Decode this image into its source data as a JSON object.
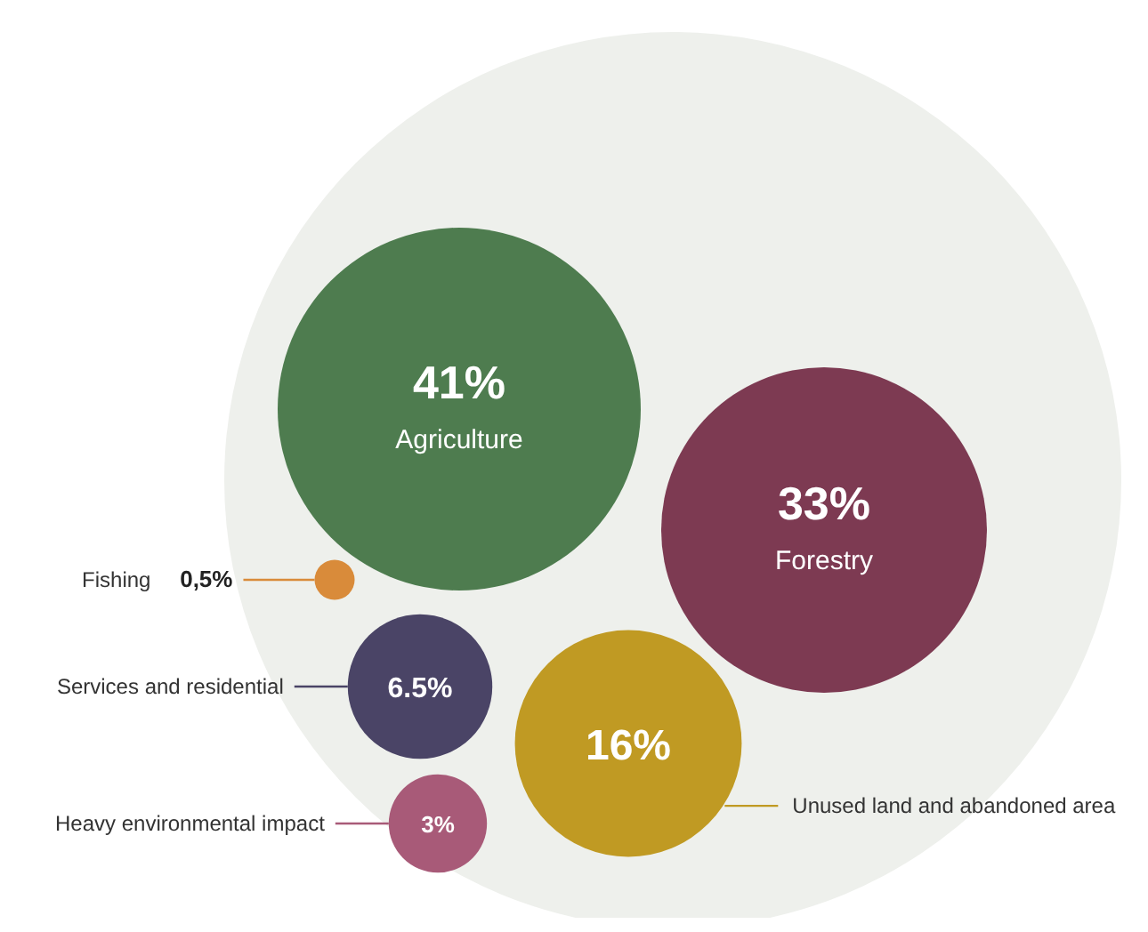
{
  "chart_data": {
    "type": "other",
    "categories": [
      "Agriculture",
      "Forestry",
      "Unused land and abandoned area",
      "Services and residential",
      "Heavy environmental impact",
      "Fishing"
    ],
    "values": [
      41,
      33,
      16,
      6.5,
      3,
      0.5
    ],
    "value_labels": [
      "41%",
      "33%",
      "16%",
      "6.5%",
      "3%",
      "0,5%"
    ],
    "colors": [
      "#4e7c4f",
      "#7d3a52",
      "#c09a23",
      "#4a4466",
      "#a85a78",
      "#d98b3a"
    ]
  }
}
